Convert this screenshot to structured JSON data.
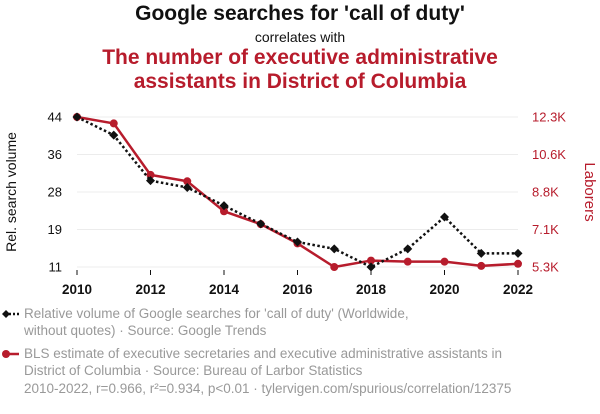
{
  "header": {
    "title": "Google searches for 'call of duty'",
    "connector": "correlates with",
    "subtitle_line1": "The number of executive administrative",
    "subtitle_line2": "assistants in District of Columbia"
  },
  "colors": {
    "series1": "#111111",
    "series2": "#b71c2c",
    "muted": "#999999"
  },
  "chart_data": {
    "type": "line",
    "x": [
      2010,
      2011,
      2012,
      2013,
      2014,
      2015,
      2016,
      2017,
      2018,
      2019,
      2020,
      2021,
      2022
    ],
    "xticks": [
      "2010",
      "2012",
      "2014",
      "2016",
      "2018",
      "2020",
      "2022"
    ],
    "y_left": {
      "label": "Rel. search volume",
      "ticks": [
        "11",
        "19",
        "28",
        "36",
        "44"
      ],
      "range": [
        11,
        44
      ]
    },
    "y_right": {
      "label": "Laborers",
      "ticks": [
        "5.3K",
        "7.1K",
        "8.8K",
        "10.6K",
        "12.3K"
      ],
      "range": [
        5300,
        12300
      ]
    },
    "series": [
      {
        "name": "Google searches for 'call of duty'",
        "axis": "left",
        "style": "dotted",
        "values": [
          44,
          40,
          30,
          28.5,
          24.5,
          20.5,
          16.5,
          15,
          11,
          15,
          22,
          14,
          14
        ]
      },
      {
        "name": "BLS estimate of executive administrative assistants",
        "axis": "right",
        "style": "solid",
        "values": [
          12300,
          12000,
          9600,
          9300,
          7900,
          7300,
          6400,
          5300,
          5600,
          5550,
          5550,
          5350,
          5450
        ]
      }
    ]
  },
  "legend": {
    "item1_line1": "Relative volume of Google searches for 'call of duty' (Worldwide,",
    "item1_line2": "without quotes) · Source: Google Trends",
    "item2_line1": "BLS estimate of executive secretaries and executive administrative assistants in",
    "item2_line2": "District of Columbia · Source: Bureau of Larbor Statistics"
  },
  "footer": "2010-2022, r=0.966, r²=0.934, p<0.01 · tylervigen.com/spurious/correlation/12375"
}
